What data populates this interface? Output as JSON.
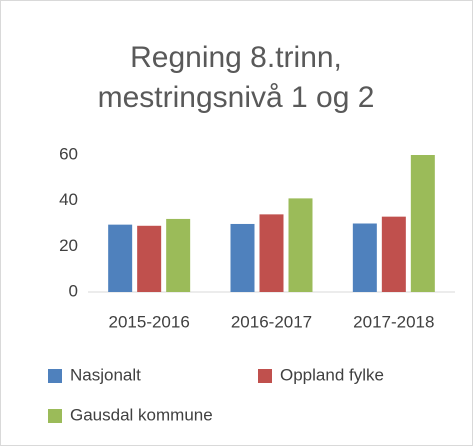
{
  "chart_data": {
    "type": "bar",
    "title": "Regning 8.trinn, mestringsnivå 1 og 2",
    "categories": [
      "2015-2016",
      "2016-2017",
      "2017-2018"
    ],
    "series": [
      {
        "name": "Nasjonalt",
        "color": "#4f81bd",
        "values": [
          29.5,
          29.8,
          30
        ]
      },
      {
        "name": "Oppland fylke",
        "color": "#c0504d",
        "values": [
          29,
          34,
          33
        ]
      },
      {
        "name": "Gausdal kommune",
        "color": "#9bbb59",
        "values": [
          32,
          41,
          60
        ]
      }
    ],
    "ylim": [
      0,
      60
    ],
    "yticks": [
      0,
      20,
      40,
      60
    ],
    "grid": false
  }
}
